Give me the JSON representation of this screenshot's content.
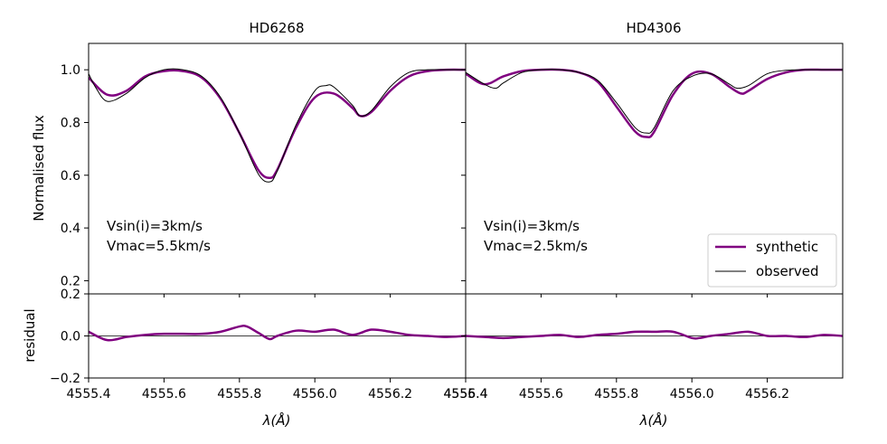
{
  "chart_data": [
    {
      "type": "line",
      "title": "HD6268",
      "xlabel": "λ(Å)",
      "ylabel": "Normalised flux",
      "xlim": [
        4555.4,
        4556.4
      ],
      "ylim": [
        0.15,
        1.1
      ],
      "xticks": [
        4555.4,
        4555.6,
        4555.8,
        4556.0,
        4556.2,
        4556.4
      ],
      "xtick_labels": [
        "4555.4",
        "4555.6",
        "4555.8",
        "4556.0",
        "4556.2",
        "4556.4"
      ],
      "yticks": [
        0.2,
        0.4,
        0.6,
        0.8,
        1.0
      ],
      "ytick_labels": [
        "0.2",
        "0.4",
        "0.6",
        "0.8",
        "1.0"
      ],
      "annotations": [
        "Vsin(i)=3km/s",
        "Vmac=5.5km/s"
      ],
      "series": [
        {
          "name": "synthetic",
          "color": "#800080",
          "x": [
            4555.4,
            4555.45,
            4555.5,
            4555.55,
            4555.6,
            4555.65,
            4555.7,
            4555.75,
            4555.8,
            4555.85,
            4555.88,
            4555.9,
            4555.95,
            4556.0,
            4556.05,
            4556.1,
            4556.12,
            4556.15,
            4556.2,
            4556.25,
            4556.3,
            4556.35,
            4556.4
          ],
          "y": [
            0.97,
            0.905,
            0.92,
            0.975,
            0.995,
            0.995,
            0.97,
            0.89,
            0.76,
            0.62,
            0.59,
            0.62,
            0.78,
            0.895,
            0.91,
            0.855,
            0.825,
            0.84,
            0.92,
            0.975,
            0.995,
            1.0,
            1.0
          ]
        },
        {
          "name": "observed",
          "color": "#000000",
          "x": [
            4555.4,
            4555.42,
            4555.45,
            4555.5,
            4555.55,
            4555.6,
            4555.65,
            4555.7,
            4555.75,
            4555.8,
            4555.85,
            4555.88,
            4555.9,
            4555.95,
            4556.0,
            4556.03,
            4556.05,
            4556.1,
            4556.12,
            4556.15,
            4556.2,
            4556.25,
            4556.3,
            4556.35,
            4556.4
          ],
          "y": [
            0.985,
            0.93,
            0.88,
            0.91,
            0.97,
            1.0,
            1.0,
            0.975,
            0.895,
            0.76,
            0.605,
            0.575,
            0.615,
            0.79,
            0.92,
            0.94,
            0.935,
            0.865,
            0.825,
            0.845,
            0.935,
            0.99,
            1.0,
            1.0,
            1.0
          ]
        }
      ],
      "residual": {
        "ylabel": "residual",
        "ylim": [
          -0.2,
          0.2
        ],
        "yticks": [
          -0.2,
          0.0,
          0.2
        ],
        "ytick_labels": [
          "−0.2",
          "0.0",
          "0.2"
        ],
        "x": [
          4555.4,
          4555.45,
          4555.5,
          4555.55,
          4555.6,
          4555.65,
          4555.7,
          4555.75,
          4555.8,
          4555.82,
          4555.85,
          4555.88,
          4555.9,
          4555.95,
          4556.0,
          4556.05,
          4556.1,
          4556.15,
          4556.2,
          4556.25,
          4556.3,
          4556.35,
          4556.4
        ],
        "y": [
          0.02,
          -0.02,
          -0.005,
          0.005,
          0.01,
          0.01,
          0.01,
          0.02,
          0.045,
          0.045,
          0.015,
          -0.015,
          0.0,
          0.025,
          0.02,
          0.03,
          0.005,
          0.03,
          0.02,
          0.005,
          0.0,
          -0.005,
          0.0
        ]
      }
    },
    {
      "type": "line",
      "title": "HD4306",
      "xlabel": "λ(Å)",
      "xlim": [
        4555.4,
        4556.4
      ],
      "ylim": [
        0.15,
        1.1
      ],
      "xticks": [
        4555.4,
        4555.6,
        4555.8,
        4556.0,
        4556.2
      ],
      "xtick_labels": [
        "4555.4",
        "4555.6",
        "4555.8",
        "4556.0",
        "4556.2"
      ],
      "annotations": [
        "Vsin(i)=3km/s",
        "Vmac=2.5km/s"
      ],
      "legend": {
        "placement": "lower-right",
        "entries": [
          "synthetic",
          "observed"
        ]
      },
      "series": [
        {
          "name": "synthetic",
          "color": "#800080",
          "x": [
            4555.4,
            4555.45,
            4555.5,
            4555.55,
            4555.6,
            4555.65,
            4555.7,
            4555.75,
            4555.8,
            4555.85,
            4555.88,
            4555.9,
            4555.95,
            4556.0,
            4556.05,
            4556.1,
            4556.13,
            4556.15,
            4556.2,
            4556.25,
            4556.3,
            4556.35,
            4556.4
          ],
          "y": [
            0.985,
            0.945,
            0.975,
            0.995,
            1.0,
            1.0,
            0.99,
            0.955,
            0.86,
            0.765,
            0.745,
            0.765,
            0.905,
            0.985,
            0.985,
            0.935,
            0.91,
            0.92,
            0.965,
            0.99,
            1.0,
            1.0,
            1.0
          ]
        },
        {
          "name": "observed",
          "color": "#000000",
          "x": [
            4555.4,
            4555.45,
            4555.48,
            4555.5,
            4555.55,
            4555.6,
            4555.65,
            4555.7,
            4555.75,
            4555.8,
            4555.85,
            4555.88,
            4555.9,
            4555.95,
            4556.0,
            4556.05,
            4556.1,
            4556.12,
            4556.15,
            4556.2,
            4556.25,
            4556.3,
            4556.35,
            4556.4
          ],
          "y": [
            0.99,
            0.945,
            0.93,
            0.95,
            0.99,
            1.0,
            1.0,
            0.99,
            0.96,
            0.875,
            0.78,
            0.76,
            0.78,
            0.92,
            0.975,
            0.985,
            0.945,
            0.93,
            0.94,
            0.985,
            0.998,
            1.0,
            1.0,
            1.0
          ]
        }
      ],
      "residual": {
        "ylim": [
          -0.2,
          0.2
        ],
        "yticks": [
          -0.2,
          0.0,
          0.2
        ],
        "x": [
          4555.4,
          4555.45,
          4555.5,
          4555.55,
          4555.6,
          4555.65,
          4555.7,
          4555.75,
          4555.8,
          4555.85,
          4555.9,
          4555.95,
          4556.0,
          4556.02,
          4556.05,
          4556.1,
          4556.15,
          4556.2,
          4556.25,
          4556.3,
          4556.35,
          4556.4
        ],
        "y": [
          0.0,
          -0.005,
          -0.01,
          -0.005,
          0.0,
          0.005,
          -0.005,
          0.005,
          0.01,
          0.02,
          0.02,
          0.02,
          -0.01,
          -0.01,
          0.0,
          0.01,
          0.02,
          0.0,
          0.0,
          -0.005,
          0.005,
          0.0
        ]
      }
    }
  ]
}
